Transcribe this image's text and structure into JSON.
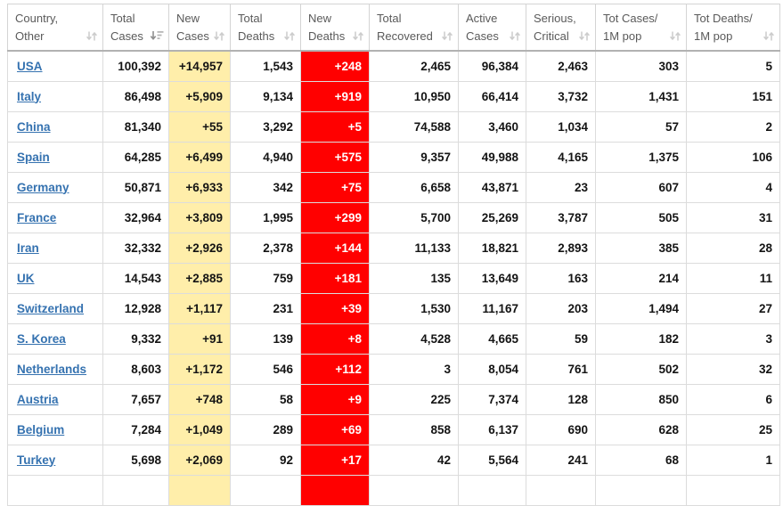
{
  "colors": {
    "new_cases_highlight": "#FFEEAA",
    "new_deaths_highlight": "#FF0000",
    "country_link": "#3572B0"
  },
  "table": {
    "columns": [
      {
        "id": "country",
        "label": "Country,\nOther",
        "align": "left",
        "sort_icon": "sort-both-icon"
      },
      {
        "id": "total_cases",
        "label": "Total\nCases",
        "align": "right",
        "sort_icon": "sort-desc-icon"
      },
      {
        "id": "new_cases",
        "label": "New\nCases",
        "align": "right",
        "sort_icon": "sort-both-icon",
        "highlight": "yellow"
      },
      {
        "id": "total_deaths",
        "label": "Total\nDeaths",
        "align": "right",
        "sort_icon": "sort-both-icon"
      },
      {
        "id": "new_deaths",
        "label": "New\nDeaths",
        "align": "right",
        "sort_icon": "sort-both-icon",
        "highlight": "red"
      },
      {
        "id": "total_recovered",
        "label": "Total\nRecovered",
        "align": "right",
        "sort_icon": "sort-both-icon"
      },
      {
        "id": "active_cases",
        "label": "Active\nCases",
        "align": "right",
        "sort_icon": "sort-both-icon"
      },
      {
        "id": "serious_critical",
        "label": "Serious,\nCritical",
        "align": "right",
        "sort_icon": "sort-both-icon"
      },
      {
        "id": "cases_per_1m",
        "label": "Tot Cases/\n1M pop",
        "align": "right",
        "sort_icon": "sort-both-icon"
      },
      {
        "id": "deaths_per_1m",
        "label": "Tot Deaths/\n1M pop",
        "align": "right",
        "sort_icon": "sort-both-icon"
      }
    ],
    "rows": [
      {
        "country": "USA",
        "total_cases": "100,392",
        "new_cases": "+14,957",
        "total_deaths": "1,543",
        "new_deaths": "+248",
        "total_recovered": "2,465",
        "active_cases": "96,384",
        "serious_critical": "2,463",
        "cases_per_1m": "303",
        "deaths_per_1m": "5"
      },
      {
        "country": "Italy",
        "total_cases": "86,498",
        "new_cases": "+5,909",
        "total_deaths": "9,134",
        "new_deaths": "+919",
        "total_recovered": "10,950",
        "active_cases": "66,414",
        "serious_critical": "3,732",
        "cases_per_1m": "1,431",
        "deaths_per_1m": "151"
      },
      {
        "country": "China",
        "total_cases": "81,340",
        "new_cases": "+55",
        "total_deaths": "3,292",
        "new_deaths": "+5",
        "total_recovered": "74,588",
        "active_cases": "3,460",
        "serious_critical": "1,034",
        "cases_per_1m": "57",
        "deaths_per_1m": "2"
      },
      {
        "country": "Spain",
        "total_cases": "64,285",
        "new_cases": "+6,499",
        "total_deaths": "4,940",
        "new_deaths": "+575",
        "total_recovered": "9,357",
        "active_cases": "49,988",
        "serious_critical": "4,165",
        "cases_per_1m": "1,375",
        "deaths_per_1m": "106"
      },
      {
        "country": "Germany",
        "total_cases": "50,871",
        "new_cases": "+6,933",
        "total_deaths": "342",
        "new_deaths": "+75",
        "total_recovered": "6,658",
        "active_cases": "43,871",
        "serious_critical": "23",
        "cases_per_1m": "607",
        "deaths_per_1m": "4"
      },
      {
        "country": "France",
        "total_cases": "32,964",
        "new_cases": "+3,809",
        "total_deaths": "1,995",
        "new_deaths": "+299",
        "total_recovered": "5,700",
        "active_cases": "25,269",
        "serious_critical": "3,787",
        "cases_per_1m": "505",
        "deaths_per_1m": "31"
      },
      {
        "country": "Iran",
        "total_cases": "32,332",
        "new_cases": "+2,926",
        "total_deaths": "2,378",
        "new_deaths": "+144",
        "total_recovered": "11,133",
        "active_cases": "18,821",
        "serious_critical": "2,893",
        "cases_per_1m": "385",
        "deaths_per_1m": "28"
      },
      {
        "country": "UK",
        "total_cases": "14,543",
        "new_cases": "+2,885",
        "total_deaths": "759",
        "new_deaths": "+181",
        "total_recovered": "135",
        "active_cases": "13,649",
        "serious_critical": "163",
        "cases_per_1m": "214",
        "deaths_per_1m": "11"
      },
      {
        "country": "Switzerland",
        "total_cases": "12,928",
        "new_cases": "+1,117",
        "total_deaths": "231",
        "new_deaths": "+39",
        "total_recovered": "1,530",
        "active_cases": "11,167",
        "serious_critical": "203",
        "cases_per_1m": "1,494",
        "deaths_per_1m": "27"
      },
      {
        "country": "S. Korea",
        "total_cases": "9,332",
        "new_cases": "+91",
        "total_deaths": "139",
        "new_deaths": "+8",
        "total_recovered": "4,528",
        "active_cases": "4,665",
        "serious_critical": "59",
        "cases_per_1m": "182",
        "deaths_per_1m": "3"
      },
      {
        "country": "Netherlands",
        "total_cases": "8,603",
        "new_cases": "+1,172",
        "total_deaths": "546",
        "new_deaths": "+112",
        "total_recovered": "3",
        "active_cases": "8,054",
        "serious_critical": "761",
        "cases_per_1m": "502",
        "deaths_per_1m": "32"
      },
      {
        "country": "Austria",
        "total_cases": "7,657",
        "new_cases": "+748",
        "total_deaths": "58",
        "new_deaths": "+9",
        "total_recovered": "225",
        "active_cases": "7,374",
        "serious_critical": "128",
        "cases_per_1m": "850",
        "deaths_per_1m": "6"
      },
      {
        "country": "Belgium",
        "total_cases": "7,284",
        "new_cases": "+1,049",
        "total_deaths": "289",
        "new_deaths": "+69",
        "total_recovered": "858",
        "active_cases": "6,137",
        "serious_critical": "690",
        "cases_per_1m": "628",
        "deaths_per_1m": "25"
      },
      {
        "country": "Turkey",
        "total_cases": "5,698",
        "new_cases": "+2,069",
        "total_deaths": "92",
        "new_deaths": "+17",
        "total_recovered": "42",
        "active_cases": "5,564",
        "serious_critical": "241",
        "cases_per_1m": "68",
        "deaths_per_1m": "1"
      }
    ]
  }
}
